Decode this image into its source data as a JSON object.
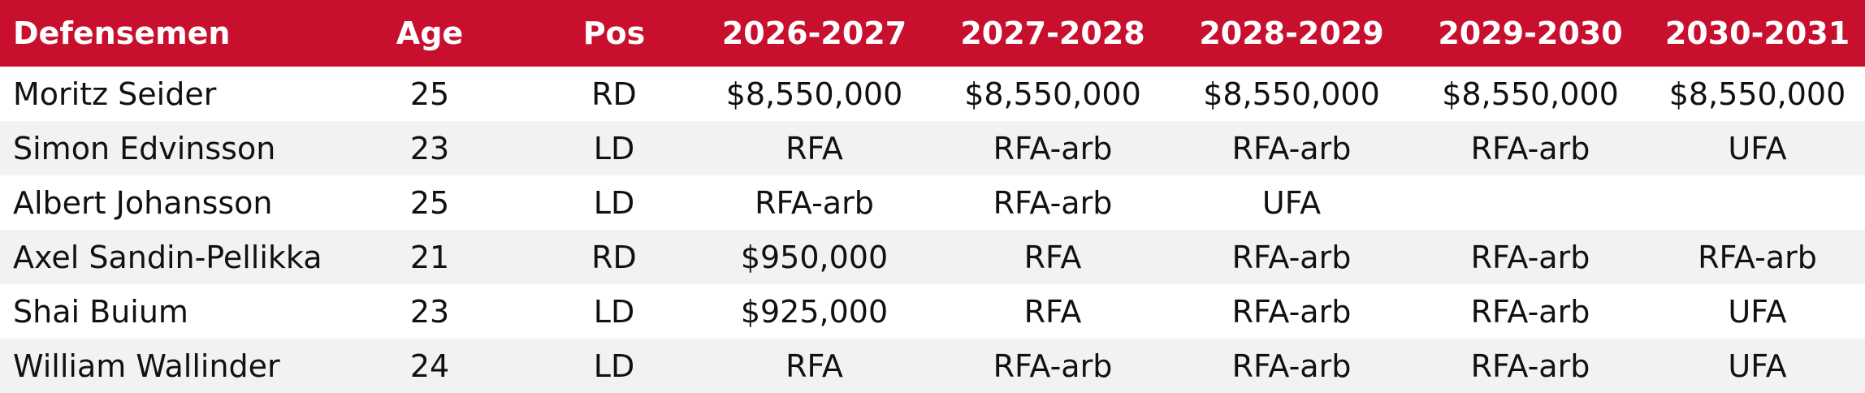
{
  "colors": {
    "header_bg": "#c8102e",
    "header_text": "#ffffff",
    "alt_row_bg": "#f2f2f2",
    "row_bg": "#ffffff"
  },
  "table": {
    "headers": [
      "Defensemen",
      "Age",
      "Pos",
      "2026-2027",
      "2027-2028",
      "2028-2029",
      "2029-2030",
      "2030-2031"
    ],
    "rows": [
      [
        "Moritz Seider",
        "25",
        "RD",
        "$8,550,000",
        "$8,550,000",
        "$8,550,000",
        "$8,550,000",
        "$8,550,000"
      ],
      [
        "Simon Edvinsson",
        "23",
        "LD",
        "RFA",
        "RFA-arb",
        "RFA-arb",
        "RFA-arb",
        "UFA"
      ],
      [
        "Albert Johansson",
        "25",
        "LD",
        "RFA-arb",
        "RFA-arb",
        "UFA",
        "",
        ""
      ],
      [
        "Axel Sandin-Pellikka",
        "21",
        "RD",
        "$950,000",
        "RFA",
        "RFA-arb",
        "RFA-arb",
        "RFA-arb"
      ],
      [
        "Shai Buium",
        "23",
        "LD",
        "$925,000",
        "RFA",
        "RFA-arb",
        "RFA-arb",
        "UFA"
      ],
      [
        "William Wallinder",
        "24",
        "LD",
        "RFA",
        "RFA-arb",
        "RFA-arb",
        "RFA-arb",
        "UFA"
      ]
    ]
  }
}
